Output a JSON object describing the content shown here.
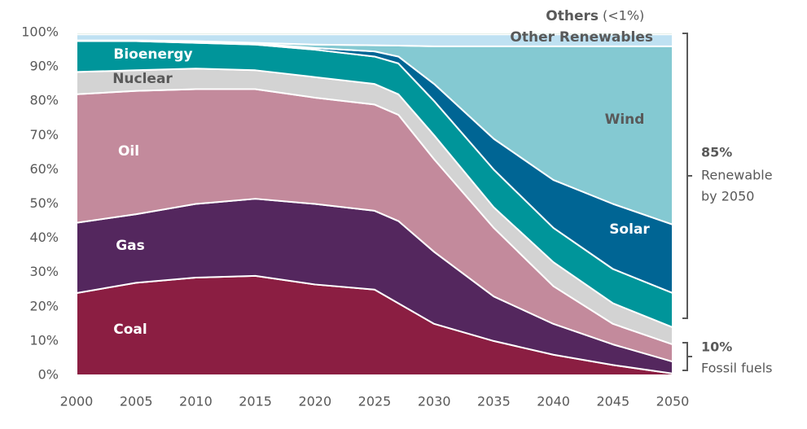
{
  "chart_data": {
    "type": "area",
    "x": [
      2000,
      2005,
      2010,
      2015,
      2020,
      2025,
      2027,
      2030,
      2035,
      2040,
      2045,
      2050
    ],
    "series": [
      {
        "name": "Coal",
        "color": "#8b1e42",
        "values": [
          24,
          27,
          28.5,
          29,
          26.5,
          25,
          21,
          15,
          10,
          6,
          3,
          0.5
        ]
      },
      {
        "name": "Gas",
        "color": "#54275e",
        "values": [
          20.5,
          20,
          21.5,
          22.5,
          23.5,
          23,
          24,
          21,
          13,
          9,
          6,
          3.5
        ]
      },
      {
        "name": "Oil",
        "color": "#c38a9c",
        "values": [
          37.5,
          36,
          33.5,
          32,
          31,
          31,
          31,
          27,
          20,
          11,
          6,
          5
        ]
      },
      {
        "name": "Nuclear",
        "color": "#d3d3d3",
        "values": [
          6.5,
          6,
          6,
          5.5,
          6,
          6,
          6,
          7,
          6,
          7,
          6,
          5
        ]
      },
      {
        "name": "Bioenergy",
        "color": "#00959a",
        "values": [
          9,
          8.5,
          7.5,
          7.5,
          8,
          8,
          9,
          10,
          11,
          10,
          10,
          10
        ]
      },
      {
        "name": "Solar",
        "color": "#006594",
        "values": [
          0.1,
          0.1,
          0.3,
          0.3,
          0.5,
          1.5,
          2,
          5,
          9,
          14,
          19,
          20
        ]
      },
      {
        "name": "Wind",
        "color": "#84c9d2",
        "values": [
          0.1,
          0.1,
          0.2,
          0.2,
          1,
          1.8,
          3.2,
          11,
          27,
          39,
          46,
          52
        ]
      },
      {
        "name": "Other Renewables",
        "color": "#bfe1f2",
        "values": [
          1.8,
          1.8,
          2,
          2.5,
          3,
          3.2,
          3.3,
          3.5,
          3.5,
          3.5,
          3.5,
          3.5
        ]
      },
      {
        "name": "Others",
        "color": "#2e7d4a",
        "values": [
          0.5,
          0.5,
          0.5,
          0.5,
          0.5,
          0.5,
          0.5,
          0.5,
          0.5,
          0.5,
          0.5,
          0.5
        ]
      }
    ],
    "others_note": "(<1%)",
    "annotations": [
      "85%",
      "Renewable",
      "by 2050",
      "10%",
      "Fossil fuels"
    ],
    "xlim": [
      2000,
      2050
    ],
    "xticks": [
      2000,
      2005,
      2010,
      2015,
      2020,
      2025,
      2030,
      2035,
      2040,
      2045,
      2050
    ],
    "ylim": [
      0,
      100
    ],
    "yticks": [
      {
        "value": 0,
        "label": "0%"
      },
      {
        "value": 10,
        "label": "10%"
      },
      {
        "value": 20,
        "label": "20%"
      },
      {
        "value": 30,
        "label": "30%"
      },
      {
        "value": 40,
        "label": "40%"
      },
      {
        "value": 50,
        "label": "50%"
      },
      {
        "value": 60,
        "label": "60%"
      },
      {
        "value": 70,
        "label": "70%"
      },
      {
        "value": 80,
        "label": "80%"
      },
      {
        "value": 90,
        "label": "90%"
      },
      {
        "value": 100,
        "label": "100%"
      }
    ]
  }
}
